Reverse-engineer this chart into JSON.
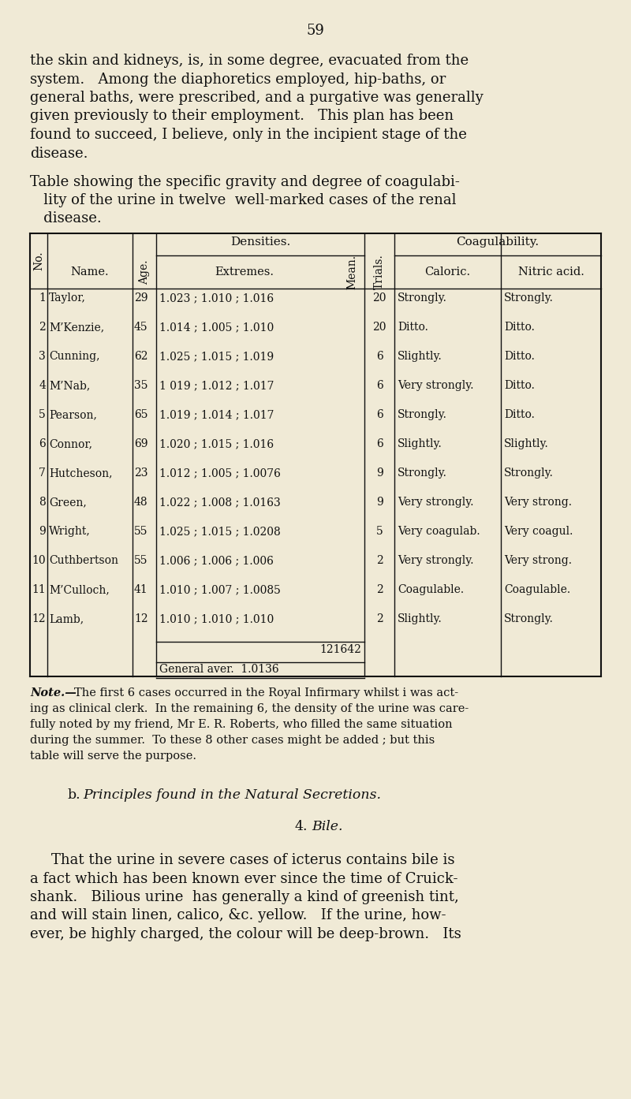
{
  "bg_color": "#f0ead6",
  "page_num": "59",
  "para1_lines": [
    "the skin and kidneys, is, in some degree, evacuated from the",
    "system.   Among the diaphoretics employed, hip-baths, or",
    "general baths, were prescribed, and a purgative was generally",
    "given previously to their employment.   This plan has been",
    "found to succeed, I believe, only in the incipient stage of the",
    "disease."
  ],
  "cap_lines": [
    "Table showing the specific gravity and degree of coagulabi-",
    "   lity of the urine in twelve  well-marked cases of the renal",
    "   disease."
  ],
  "table_rows": [
    [
      "1",
      "Taylor,",
      "29",
      "1.023 ; 1.010 ; 1.016",
      "20",
      "Strongly.",
      "Strongly."
    ],
    [
      "2",
      "M’Kenzie,",
      "45",
      "1.014 ; 1.005 ; 1.010",
      "20",
      "Ditto.",
      "Ditto."
    ],
    [
      "3",
      "Cunning,",
      "62",
      "1.025 ; 1.015 ; 1.019",
      "6",
      "Slightly.",
      "Ditto."
    ],
    [
      "4",
      "M’Nab,",
      "35",
      "1 019 ; 1.012 ; 1.017",
      "6",
      "Very strongly.",
      "Ditto."
    ],
    [
      "5",
      "Pearson,",
      "65",
      "1.019 ; 1.014 ; 1.017",
      "6",
      "Strongly.",
      "Ditto."
    ],
    [
      "6",
      "Connor,",
      "69",
      "1.020 ; 1.015 ; 1.016",
      "6",
      "Slightly.",
      "Slightly."
    ],
    [
      "7",
      "Hutcheson,",
      "23",
      "1.012 ; 1.005 ; 1.0076",
      "9",
      "Strongly.",
      "Strongly."
    ],
    [
      "8",
      "Green,",
      "48",
      "1.022 ; 1.008 ; 1.0163",
      "9",
      "Very strongly.",
      "Very strong."
    ],
    [
      "9",
      "Wright,",
      "55",
      "1.025 ; 1.015 ; 1.0208",
      "5",
      "Very coagulab.",
      "Very coagul."
    ],
    [
      "10",
      "Cuthbertson",
      "55",
      "1.006 ; 1.006 ; 1.006",
      "2",
      "Very strongly.",
      "Very strong."
    ],
    [
      "11",
      "M’Culloch,",
      "41",
      "1.010 ; 1.007 ; 1.0085",
      "2",
      "Coagulable.",
      "Coagulable."
    ],
    [
      "12",
      "Lamb,",
      "12",
      "1.010 ; 1.010 ; 1.010",
      "2",
      "Slightly.",
      "Strongly."
    ]
  ],
  "table_sum": "121642",
  "table_avg": "General aver.  1.0136",
  "note_lines": [
    "Note.—The first 6 cases occurred in the Royal Infirmary whilst i was act-",
    "ing as clinical clerk.  In the remaining 6, the density of the urine was care-",
    "fully noted by my friend, Mr E. R. Roberts, who filled the same situation",
    "during the summer.  To these 8 other cases might be added ; but this",
    "table will serve the purpose."
  ],
  "section_b_prefix": "b.",
  "section_b_italic": "Principles found in the Natural Secretions.",
  "section_4_prefix": "4.",
  "section_4_italic": "Bile.",
  "para2_lines": [
    "That the urine in severe cases of icterus contains bile is",
    "a fact which has been known ever since the time of Cruick-",
    "shank.   Bilious urine  has generally a kind of greenish tint,",
    "and will stain linen, calico, &c. yellow.   If the urine, how-",
    "ever, be highly charged, the colour will be deep-brown.   Its"
  ]
}
